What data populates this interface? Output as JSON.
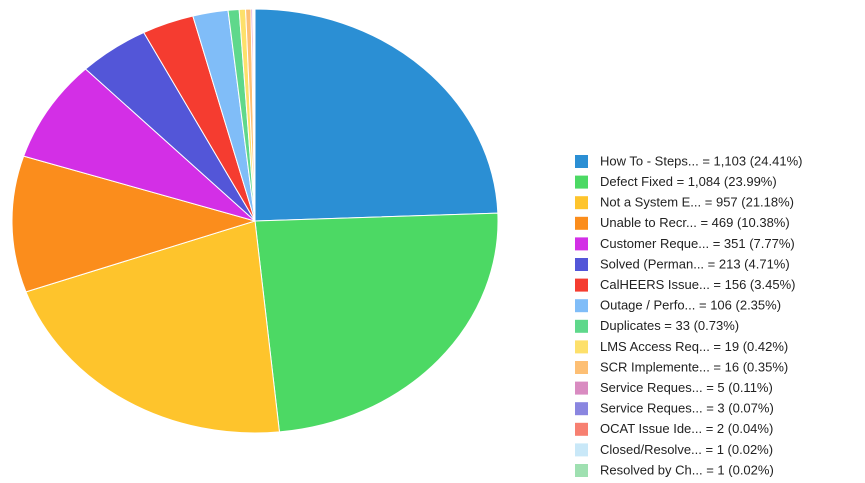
{
  "chart_data": {
    "type": "pie",
    "categories": [
      "How To - Steps... = 1,103 (24.41%)",
      "Defect Fixed = 1,084 (23.99%)",
      "Not a System E... = 957 (21.18%)",
      "Unable to Recr... = 469 (10.38%)",
      "Customer Reque... = 351 (7.77%)",
      "Solved (Perman... = 213 (4.71%)",
      "CalHEERS Issue... = 156 (3.45%)",
      "Outage / Perfo... = 106 (2.35%)",
      "Duplicates = 33 (0.73%)",
      "LMS Access Req... = 19 (0.42%)",
      "SCR Implemente... = 16 (0.35%)",
      "Service Reques... = 5 (0.11%)",
      "Service Reques... = 3 (0.07%)",
      "OCAT Issue Ide... = 2 (0.04%)",
      "Closed/Resolve... = 1 (0.02%)",
      "Resolved by Ch... = 1 (0.02%)"
    ],
    "values": [
      1103,
      1084,
      957,
      469,
      351,
      213,
      156,
      106,
      33,
      19,
      16,
      5,
      3,
      2,
      1,
      1
    ],
    "colors": [
      "#2b8fd4",
      "#4cd964",
      "#fec42c",
      "#fb8d1c",
      "#d32fe6",
      "#5356d8",
      "#f53c30",
      "#80bdf8",
      "#5fd88b",
      "#fde06b",
      "#fdbf74",
      "#d98bc1",
      "#8a86e0",
      "#f78071",
      "#c9e8f8",
      "#9fe0b1"
    ],
    "legend": "right"
  }
}
